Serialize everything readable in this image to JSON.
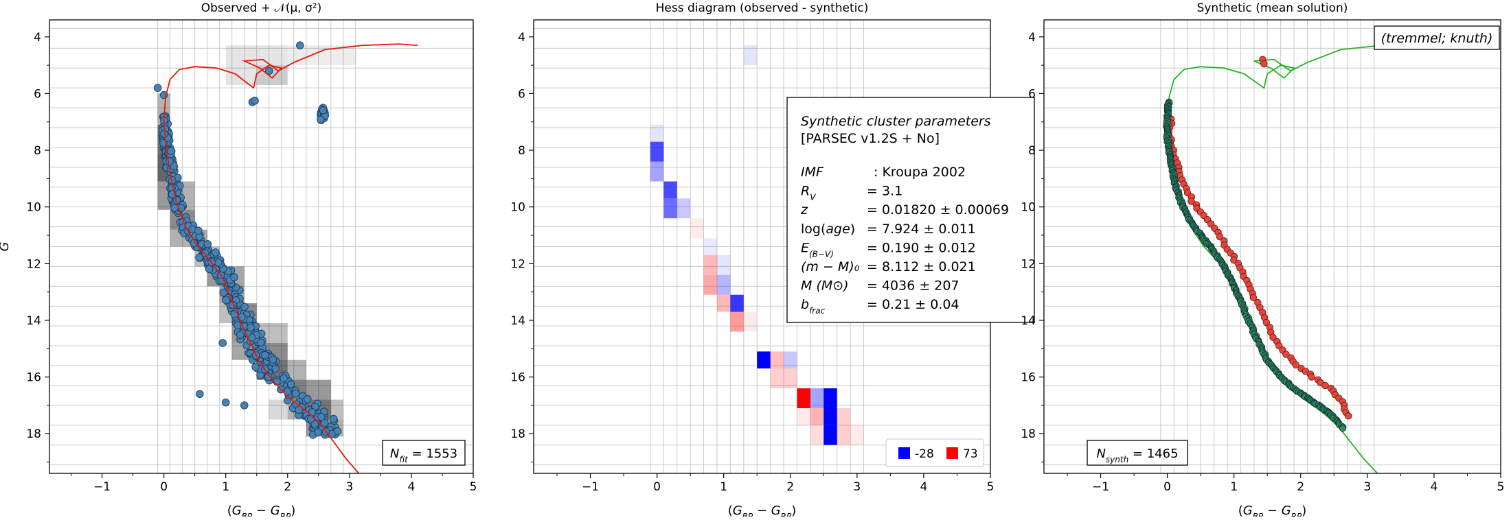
{
  "chart_data": [
    {
      "type": "scatter",
      "title": "Observed + 𝒩(μ, σ²)",
      "xlabel": "(G_BP − G_RP)",
      "ylabel": "G",
      "xlim": [
        -1.85,
        5.0
      ],
      "ylim": [
        19.4,
        3.4
      ],
      "y_inverted": true,
      "xticks": [
        "−1",
        "0",
        "1",
        "2",
        "3",
        "4",
        "5"
      ],
      "yticks": [
        "4",
        "6",
        "8",
        "10",
        "12",
        "14",
        "16",
        "18"
      ],
      "grid": true,
      "note": "N_fit = 1553",
      "note_position": "bottom-right",
      "colors": {
        "points": "#4682b4",
        "isochrone": "#e8160c",
        "hess": "#000000"
      },
      "hess_cells": [
        {
          "x0": 1.0,
          "x1": 2.0,
          "y0": 4.3,
          "y1": 5.0,
          "d": 0.1
        },
        {
          "x0": 2.0,
          "x1": 3.1,
          "y0": 4.3,
          "y1": 5.0,
          "d": 0.07
        },
        {
          "x0": 1.0,
          "x1": 1.5,
          "y0": 5.0,
          "y1": 5.7,
          "d": 0.1
        },
        {
          "x0": 1.5,
          "x1": 2.0,
          "y0": 5.0,
          "y1": 5.7,
          "d": 0.2
        },
        {
          "x0": -0.1,
          "x1": 0.1,
          "y0": 6.0,
          "y1": 7.1,
          "d": 0.3
        },
        {
          "x0": -0.1,
          "x1": 0.1,
          "y0": 7.1,
          "y1": 8.1,
          "d": 0.55
        },
        {
          "x0": -0.1,
          "x1": 0.1,
          "y0": 8.1,
          "y1": 9.1,
          "d": 0.6
        },
        {
          "x0": -0.1,
          "x1": 0.1,
          "y0": 9.1,
          "y1": 10.1,
          "d": 0.4
        },
        {
          "x0": 0.1,
          "x1": 0.5,
          "y0": 9.1,
          "y1": 10.1,
          "d": 0.3
        },
        {
          "x0": 0.1,
          "x1": 0.5,
          "y0": 10.1,
          "y1": 10.8,
          "d": 0.45
        },
        {
          "x0": 0.1,
          "x1": 0.5,
          "y0": 10.8,
          "y1": 11.4,
          "d": 0.3
        },
        {
          "x0": 0.5,
          "x1": 0.7,
          "y0": 10.8,
          "y1": 11.4,
          "d": 0.35
        },
        {
          "x0": 0.5,
          "x1": 0.7,
          "y0": 11.4,
          "y1": 12.1,
          "d": 0.25
        },
        {
          "x0": 0.7,
          "x1": 0.9,
          "y0": 11.4,
          "y1": 12.1,
          "d": 0.25
        },
        {
          "x0": 0.7,
          "x1": 0.9,
          "y0": 12.1,
          "y1": 12.8,
          "d": 0.4
        },
        {
          "x0": 0.9,
          "x1": 1.3,
          "y0": 12.1,
          "y1": 12.8,
          "d": 0.35
        },
        {
          "x0": 0.9,
          "x1": 1.3,
          "y0": 12.8,
          "y1": 13.4,
          "d": 0.35
        },
        {
          "x0": 0.9,
          "x1": 1.1,
          "y0": 13.4,
          "y1": 14.1,
          "d": 0.25
        },
        {
          "x0": 1.1,
          "x1": 1.5,
          "y0": 13.4,
          "y1": 14.1,
          "d": 0.45
        },
        {
          "x0": 1.1,
          "x1": 1.5,
          "y0": 14.1,
          "y1": 14.8,
          "d": 0.4
        },
        {
          "x0": 1.1,
          "x1": 1.5,
          "y0": 14.8,
          "y1": 15.4,
          "d": 0.35
        },
        {
          "x0": 1.5,
          "x1": 2.0,
          "y0": 14.1,
          "y1": 14.8,
          "d": 0.25
        },
        {
          "x0": 1.5,
          "x1": 2.0,
          "y0": 14.8,
          "y1": 15.4,
          "d": 0.45
        },
        {
          "x0": 1.5,
          "x1": 2.0,
          "y0": 15.4,
          "y1": 16.1,
          "d": 0.55
        },
        {
          "x0": 2.0,
          "x1": 2.3,
          "y0": 15.4,
          "y1": 16.1,
          "d": 0.3
        },
        {
          "x0": 2.0,
          "x1": 2.3,
          "y0": 16.1,
          "y1": 16.8,
          "d": 0.5
        },
        {
          "x0": 2.3,
          "x1": 2.7,
          "y0": 16.1,
          "y1": 16.8,
          "d": 0.4
        },
        {
          "x0": 2.3,
          "x1": 2.7,
          "y0": 16.8,
          "y1": 17.5,
          "d": 0.55
        },
        {
          "x0": 2.0,
          "x1": 2.3,
          "y0": 16.8,
          "y1": 17.5,
          "d": 0.3
        },
        {
          "x0": 2.7,
          "x1": 2.9,
          "y0": 16.8,
          "y1": 17.5,
          "d": 0.25
        },
        {
          "x0": 2.3,
          "x1": 2.7,
          "y0": 17.5,
          "y1": 18.1,
          "d": 0.4
        },
        {
          "x0": 2.7,
          "x1": 2.9,
          "y0": 17.5,
          "y1": 18.1,
          "d": 0.3
        },
        {
          "x0": 1.7,
          "x1": 2.0,
          "y0": 16.8,
          "y1": 17.5,
          "d": 0.15
        }
      ],
      "isochrone": [
        [
          3.15,
          19.4
        ],
        [
          2.95,
          18.9
        ],
        [
          2.75,
          18.3
        ],
        [
          2.55,
          17.7
        ],
        [
          2.3,
          17.2
        ],
        [
          2.0,
          16.7
        ],
        [
          1.75,
          16.1
        ],
        [
          1.55,
          15.5
        ],
        [
          1.4,
          14.8
        ],
        [
          1.25,
          14.1
        ],
        [
          1.1,
          13.3
        ],
        [
          0.95,
          12.5
        ],
        [
          0.75,
          11.9
        ],
        [
          0.55,
          11.4
        ],
        [
          0.35,
          10.7
        ],
        [
          0.2,
          9.8
        ],
        [
          0.1,
          8.8
        ],
        [
          0.03,
          7.8
        ],
        [
          0.0,
          6.9
        ],
        [
          0.03,
          6.1
        ],
        [
          0.1,
          5.5
        ],
        [
          0.25,
          5.15
        ],
        [
          0.5,
          5.05
        ],
        [
          0.85,
          5.1
        ],
        [
          1.15,
          5.3
        ],
        [
          1.45,
          5.8
        ],
        [
          1.5,
          5.3
        ],
        [
          1.7,
          5.0
        ],
        [
          1.9,
          5.1
        ],
        [
          1.75,
          5.45
        ],
        [
          1.55,
          5.1
        ],
        [
          1.3,
          4.85
        ],
        [
          1.6,
          4.8
        ],
        [
          1.85,
          5.2
        ],
        [
          2.1,
          4.9
        ],
        [
          2.6,
          4.45
        ],
        [
          3.2,
          4.3
        ],
        [
          3.8,
          4.25
        ],
        [
          4.1,
          4.3
        ]
      ],
      "bright_points": [
        [
          2.2,
          4.3
        ],
        [
          1.7,
          5.2
        ],
        [
          1.43,
          6.3
        ],
        [
          1.47,
          6.25
        ],
        [
          -0.1,
          5.8
        ],
        [
          0.0,
          6.05
        ],
        [
          0.58,
          16.6
        ],
        [
          1.3,
          17.0
        ],
        [
          0.95,
          14.8
        ],
        [
          1.0,
          16.9
        ]
      ],
      "points_count_label": "1553"
    },
    {
      "type": "heatmap",
      "title": "Hess diagram (observed - synthetic)",
      "xlabel": "(G_BP − G_RP)",
      "xlim": [
        -1.85,
        5.0
      ],
      "ylim": [
        19.4,
        3.4
      ],
      "y_inverted": true,
      "xticks": [
        "−1",
        "0",
        "1",
        "2",
        "3",
        "4",
        "5"
      ],
      "yticks": [
        "4",
        "6",
        "8",
        "10",
        "12",
        "14",
        "16",
        "18"
      ],
      "grid": true,
      "colors": {
        "negative": "#0000ff",
        "positive": "#ff0000"
      },
      "legend": [
        {
          "label": "-28",
          "color": "#0000ff"
        },
        {
          "label": "73",
          "color": "#ff0000"
        }
      ],
      "legend_position": "bottom-right",
      "min_value": -28,
      "max_value": 73,
      "cells": [
        {
          "x0": 1.3,
          "x1": 1.5,
          "y0": 4.3,
          "y1": 5.0,
          "v": -3
        },
        {
          "x0": -0.1,
          "x1": 0.1,
          "y0": 7.1,
          "y1": 7.7,
          "v": -3
        },
        {
          "x0": -0.1,
          "x1": 0.1,
          "y0": 7.7,
          "y1": 8.4,
          "v": -20
        },
        {
          "x0": -0.1,
          "x1": 0.1,
          "y0": 8.4,
          "y1": 9.1,
          "v": -10
        },
        {
          "x0": 0.1,
          "x1": 0.3,
          "y0": 9.1,
          "y1": 9.7,
          "v": -20
        },
        {
          "x0": 0.1,
          "x1": 0.3,
          "y0": 9.7,
          "y1": 10.4,
          "v": -16
        },
        {
          "x0": 0.3,
          "x1": 0.5,
          "y0": 9.7,
          "y1": 10.4,
          "v": -6
        },
        {
          "x0": 0.5,
          "x1": 0.7,
          "y0": 10.4,
          "y1": 11.1,
          "v": 4
        },
        {
          "x0": 0.7,
          "x1": 0.9,
          "y0": 11.1,
          "y1": 11.7,
          "v": -1
        },
        {
          "x0": 0.7,
          "x1": 0.9,
          "y0": 11.7,
          "y1": 12.4,
          "v": 20
        },
        {
          "x0": 0.7,
          "x1": 0.9,
          "y0": 12.4,
          "y1": 13.1,
          "v": 25
        },
        {
          "x0": 0.9,
          "x1": 1.1,
          "y0": 11.7,
          "y1": 12.4,
          "v": -3
        },
        {
          "x0": 0.9,
          "x1": 1.1,
          "y0": 12.4,
          "y1": 13.1,
          "v": -8
        },
        {
          "x0": 0.9,
          "x1": 1.1,
          "y0": 13.1,
          "y1": 13.7,
          "v": 20
        },
        {
          "x0": 1.1,
          "x1": 1.3,
          "y0": 13.1,
          "y1": 13.7,
          "v": -22
        },
        {
          "x0": 1.1,
          "x1": 1.3,
          "y0": 13.7,
          "y1": 14.4,
          "v": 28
        },
        {
          "x0": 1.3,
          "x1": 1.5,
          "y0": 13.7,
          "y1": 14.4,
          "v": 3
        },
        {
          "x0": 1.5,
          "x1": 1.7,
          "y0": 15.1,
          "y1": 15.7,
          "v": -28
        },
        {
          "x0": 1.7,
          "x1": 1.9,
          "y0": 15.1,
          "y1": 15.7,
          "v": 18
        },
        {
          "x0": 1.9,
          "x1": 2.1,
          "y0": 15.1,
          "y1": 15.7,
          "v": -6
        },
        {
          "x0": 1.7,
          "x1": 1.9,
          "y0": 15.7,
          "y1": 16.4,
          "v": 14
        },
        {
          "x0": 1.9,
          "x1": 2.1,
          "y0": 15.7,
          "y1": 16.4,
          "v": 14
        },
        {
          "x0": 2.1,
          "x1": 2.3,
          "y0": 16.4,
          "y1": 17.1,
          "v": 73
        },
        {
          "x0": 2.3,
          "x1": 2.5,
          "y0": 16.4,
          "y1": 17.1,
          "v": -10
        },
        {
          "x0": 2.5,
          "x1": 2.7,
          "y0": 16.4,
          "y1": 17.1,
          "v": -28
        },
        {
          "x0": 2.1,
          "x1": 2.3,
          "y0": 17.1,
          "y1": 17.7,
          "v": 6
        },
        {
          "x0": 2.3,
          "x1": 2.5,
          "y0": 17.1,
          "y1": 17.7,
          "v": 22
        },
        {
          "x0": 2.5,
          "x1": 2.7,
          "y0": 17.1,
          "y1": 17.7,
          "v": -28
        },
        {
          "x0": 2.3,
          "x1": 2.5,
          "y0": 17.7,
          "y1": 18.4,
          "v": 10
        },
        {
          "x0": 2.5,
          "x1": 2.7,
          "y0": 17.7,
          "y1": 18.4,
          "v": -28
        },
        {
          "x0": 2.7,
          "x1": 2.9,
          "y0": 17.1,
          "y1": 17.7,
          "v": 14
        },
        {
          "x0": 2.7,
          "x1": 2.9,
          "y0": 17.7,
          "y1": 18.4,
          "v": 14
        },
        {
          "x0": 2.9,
          "x1": 3.1,
          "y0": 17.7,
          "y1": 18.4,
          "v": 4
        }
      ],
      "parameter_box": {
        "title": "Synthetic cluster parameters",
        "subtitle": "[PARSEC v1.2S + No]",
        "rows": [
          {
            "label": "IMF",
            "value": ": Kroupa 2002"
          },
          {
            "label": "R_V",
            "value": "= 3.1"
          },
          {
            "label": "z",
            "value": "= 0.01820 ± 0.00069"
          },
          {
            "label": "log(age)",
            "value": "= 7.924 ± 0.011"
          },
          {
            "label": "E_(B−V)",
            "value": "= 0.190 ± 0.012"
          },
          {
            "label": "(m − M)₀",
            "value": "= 8.112 ± 0.021"
          },
          {
            "label": "M (M⊙)",
            "value": "= 4036 ± 207"
          },
          {
            "label": "b_frac",
            "value": "= 0.21 ± 0.04"
          }
        ]
      }
    },
    {
      "type": "scatter",
      "title": "Synthetic (mean solution)",
      "xlabel": "(G_BP − G_RP)",
      "xlim": [
        -1.85,
        5.0
      ],
      "ylim": [
        19.4,
        3.4
      ],
      "y_inverted": true,
      "xticks": [
        "−1",
        "0",
        "1",
        "2",
        "3",
        "4",
        "5"
      ],
      "yticks": [
        "4",
        "6",
        "8",
        "10",
        "12",
        "14",
        "16",
        "18"
      ],
      "grid": true,
      "note": "N_synth = 1465",
      "note_position": "bottom-left",
      "method_label": "(tremmel; knuth)",
      "method_position": "top-right",
      "colors": {
        "single": "#2e8b57",
        "binary": "#e8443a",
        "isochrone": "#22b422"
      },
      "isochrone": [
        [
          3.15,
          19.4
        ],
        [
          2.95,
          18.9
        ],
        [
          2.75,
          18.3
        ],
        [
          2.55,
          17.7
        ],
        [
          2.3,
          17.2
        ],
        [
          2.0,
          16.7
        ],
        [
          1.75,
          16.1
        ],
        [
          1.55,
          15.5
        ],
        [
          1.4,
          14.8
        ],
        [
          1.25,
          14.1
        ],
        [
          1.1,
          13.3
        ],
        [
          0.95,
          12.5
        ],
        [
          0.75,
          11.9
        ],
        [
          0.55,
          11.4
        ],
        [
          0.35,
          10.7
        ],
        [
          0.2,
          9.8
        ],
        [
          0.1,
          8.8
        ],
        [
          0.03,
          7.8
        ],
        [
          0.0,
          6.9
        ],
        [
          0.03,
          6.1
        ],
        [
          0.1,
          5.5
        ],
        [
          0.25,
          5.15
        ],
        [
          0.5,
          5.05
        ],
        [
          0.85,
          5.1
        ],
        [
          1.15,
          5.3
        ],
        [
          1.45,
          5.8
        ],
        [
          1.5,
          5.3
        ],
        [
          1.7,
          5.0
        ],
        [
          1.9,
          5.1
        ],
        [
          1.75,
          5.45
        ],
        [
          1.55,
          5.1
        ],
        [
          1.3,
          4.85
        ],
        [
          1.6,
          4.8
        ],
        [
          1.85,
          5.2
        ],
        [
          2.1,
          4.9
        ],
        [
          2.6,
          4.45
        ],
        [
          3.2,
          4.3
        ],
        [
          3.8,
          4.25
        ],
        [
          4.1,
          4.3
        ]
      ],
      "single_track": [
        [
          0.02,
          6.3
        ],
        [
          0.0,
          6.8
        ],
        [
          0.0,
          7.4
        ],
        [
          0.02,
          8.0
        ],
        [
          0.07,
          8.6
        ],
        [
          0.12,
          9.2
        ],
        [
          0.2,
          9.8
        ],
        [
          0.32,
          10.4
        ],
        [
          0.5,
          11.0
        ],
        [
          0.68,
          11.5
        ],
        [
          0.85,
          12.1
        ],
        [
          0.98,
          12.7
        ],
        [
          1.1,
          13.3
        ],
        [
          1.22,
          14.0
        ],
        [
          1.35,
          14.7
        ],
        [
          1.5,
          15.4
        ],
        [
          1.7,
          16.0
        ],
        [
          1.95,
          16.5
        ],
        [
          2.2,
          16.9
        ],
        [
          2.45,
          17.3
        ],
        [
          2.65,
          17.85
        ]
      ],
      "binary_track": [
        [
          0.05,
          6.9
        ],
        [
          0.04,
          7.5
        ],
        [
          0.08,
          8.0
        ],
        [
          0.15,
          8.6
        ],
        [
          0.25,
          9.2
        ],
        [
          0.38,
          9.8
        ],
        [
          0.55,
          10.3
        ],
        [
          0.75,
          10.9
        ],
        [
          0.92,
          11.5
        ],
        [
          1.05,
          12.0
        ],
        [
          1.18,
          12.6
        ],
        [
          1.3,
          13.2
        ],
        [
          1.45,
          13.9
        ],
        [
          1.6,
          14.6
        ],
        [
          1.78,
          15.2
        ],
        [
          2.0,
          15.7
        ],
        [
          2.25,
          16.1
        ],
        [
          2.5,
          16.5
        ],
        [
          2.65,
          17.0
        ],
        [
          2.75,
          17.5
        ]
      ],
      "binary_extra": [
        [
          1.43,
          4.8
        ],
        [
          1.45,
          4.95
        ]
      ],
      "points_count_label": "1465"
    }
  ]
}
